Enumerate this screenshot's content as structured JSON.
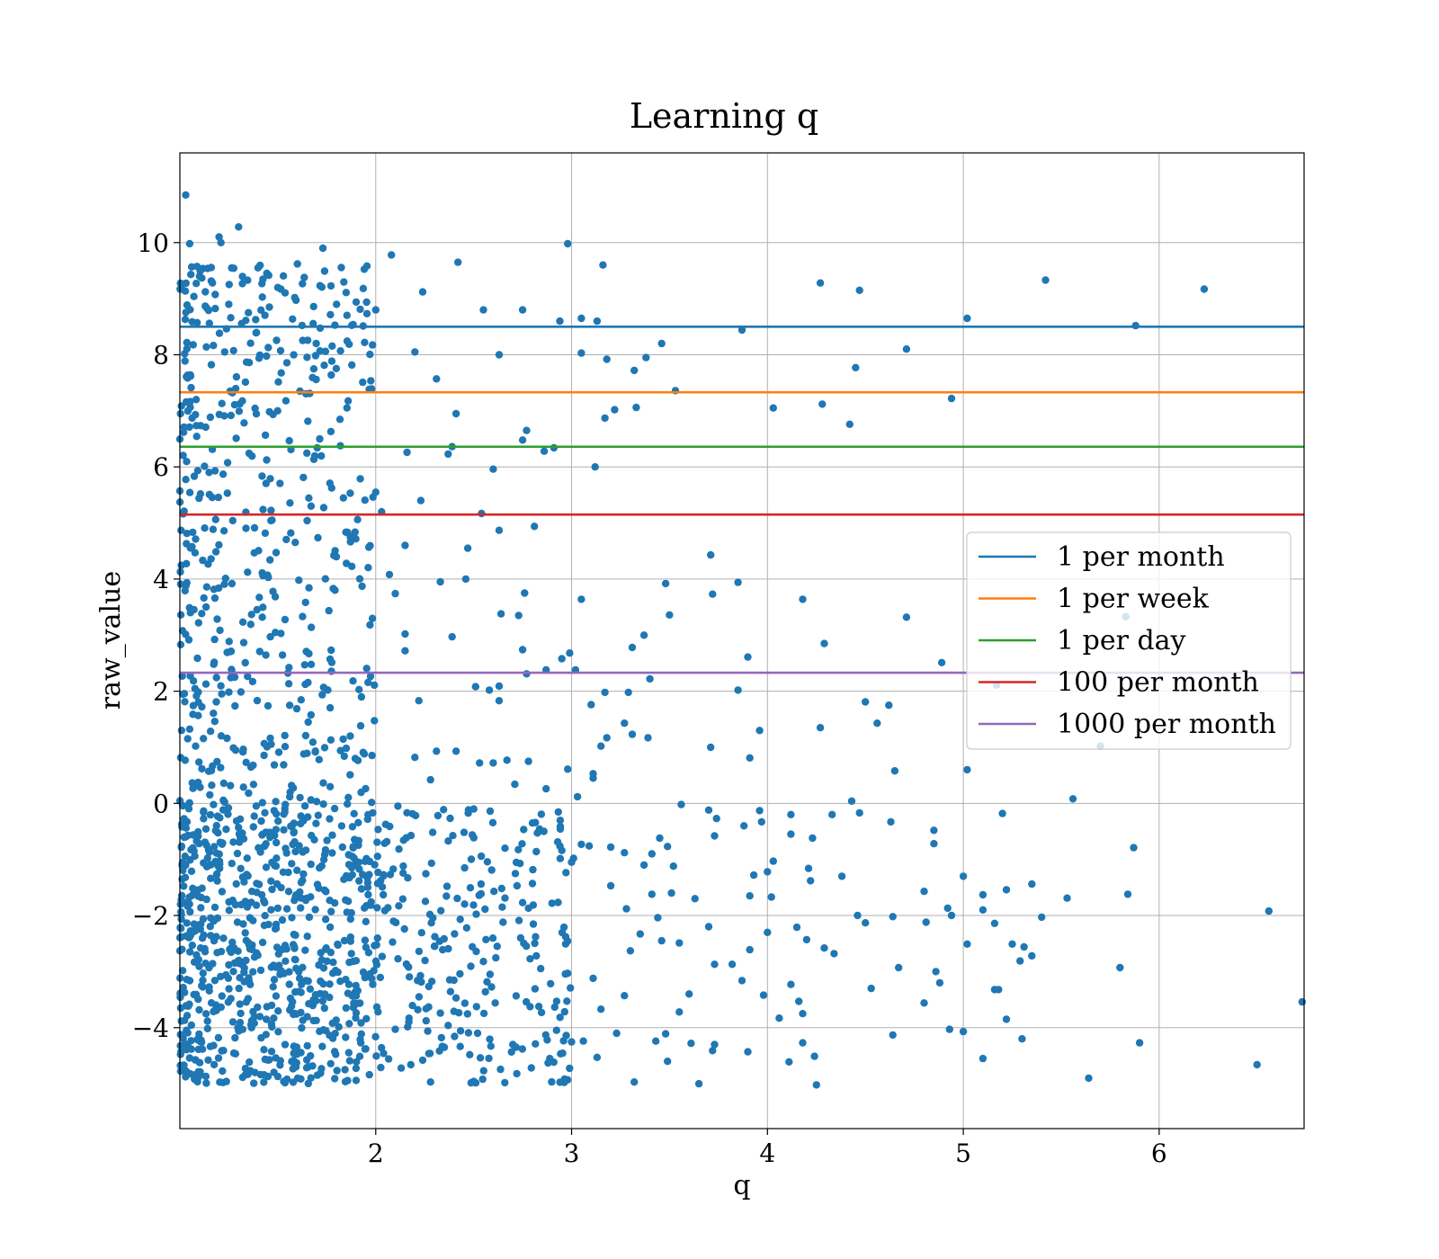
{
  "chart_data": {
    "type": "scatter",
    "title": "Learning q",
    "xlabel": "q",
    "ylabel": "raw_value",
    "xlim": [
      1.0,
      6.74
    ],
    "ylim": [
      -5.8,
      11.6
    ],
    "x_ticks": [
      2,
      3,
      4,
      5,
      6
    ],
    "y_ticks": [
      -4,
      -2,
      0,
      2,
      4,
      6,
      8,
      10
    ],
    "x_tick_labels": [
      "2",
      "3",
      "4",
      "5",
      "6"
    ],
    "y_tick_labels": [
      "−4",
      "−2",
      "0",
      "2",
      "4",
      "6",
      "8",
      "10"
    ],
    "grid": true,
    "legend_position": "center-right",
    "point_color": "#1f77b4",
    "reference_lines": [
      {
        "name": "1 per month",
        "y": 8.5,
        "color": "#1f77b4"
      },
      {
        "name": "1 per week",
        "y": 7.33,
        "color": "#ff7f0e"
      },
      {
        "name": "1 per day",
        "y": 6.36,
        "color": "#2ca02c"
      },
      {
        "name": "100 per month",
        "y": 5.15,
        "color": "#d62728"
      },
      {
        "name": "1000 per month",
        "y": 2.33,
        "color": "#9467bd"
      }
    ],
    "points": [
      [
        1.03,
        10.85
      ],
      [
        1.2,
        10.1
      ],
      [
        1.3,
        10.28
      ],
      [
        1.21,
        10.0
      ],
      [
        1.73,
        9.9
      ],
      [
        1.05,
        9.98
      ],
      [
        2.98,
        9.98
      ],
      [
        2.08,
        9.78
      ],
      [
        2.42,
        9.65
      ],
      [
        3.16,
        9.6
      ],
      [
        5.42,
        9.33
      ],
      [
        4.27,
        9.28
      ],
      [
        6.23,
        9.17
      ],
      [
        4.47,
        9.15
      ],
      [
        2.24,
        9.12
      ],
      [
        1.6,
        9.62
      ],
      [
        1.1,
        9.4
      ],
      [
        1.5,
        9.2
      ],
      [
        1.25,
        8.9
      ],
      [
        1.35,
        8.75
      ],
      [
        1.8,
        8.9
      ],
      [
        2.0,
        8.8
      ],
      [
        2.55,
        8.8
      ],
      [
        2.75,
        8.8
      ],
      [
        3.05,
        8.65
      ],
      [
        3.13,
        8.6
      ],
      [
        2.94,
        8.6
      ],
      [
        5.02,
        8.65
      ],
      [
        5.88,
        8.52
      ],
      [
        3.87,
        8.44
      ],
      [
        3.46,
        8.2
      ],
      [
        4.71,
        8.1
      ],
      [
        3.38,
        7.95
      ],
      [
        3.18,
        7.92
      ],
      [
        2.63,
        8.0
      ],
      [
        3.05,
        8.03
      ],
      [
        2.2,
        8.05
      ],
      [
        4.45,
        7.77
      ],
      [
        3.32,
        7.72
      ],
      [
        3.53,
        7.36
      ],
      [
        2.31,
        7.57
      ],
      [
        4.03,
        7.05
      ],
      [
        4.28,
        7.12
      ],
      [
        3.33,
        7.06
      ],
      [
        3.22,
        7.02
      ],
      [
        4.94,
        7.22
      ],
      [
        4.42,
        6.76
      ],
      [
        3.17,
        6.87
      ],
      [
        2.41,
        6.95
      ],
      [
        2.75,
        6.48
      ],
      [
        2.77,
        6.65
      ],
      [
        2.91,
        6.34
      ],
      [
        2.86,
        6.28
      ],
      [
        2.39,
        6.36
      ],
      [
        2.16,
        6.26
      ],
      [
        2.37,
        6.23
      ],
      [
        3.12,
        6.0
      ],
      [
        2.6,
        5.96
      ],
      [
        2.0,
        5.55
      ],
      [
        2.23,
        5.4
      ],
      [
        2.03,
        5.2
      ],
      [
        2.54,
        5.17
      ],
      [
        2.63,
        4.87
      ],
      [
        2.81,
        4.94
      ],
      [
        1.87,
        4.75
      ],
      [
        2.15,
        4.6
      ],
      [
        2.47,
        4.55
      ],
      [
        3.71,
        4.43
      ],
      [
        2.07,
        4.08
      ],
      [
        2.46,
        4.0
      ],
      [
        2.33,
        3.95
      ],
      [
        3.48,
        3.92
      ],
      [
        3.85,
        3.94
      ],
      [
        2.1,
        3.74
      ],
      [
        2.76,
        3.75
      ],
      [
        3.72,
        3.73
      ],
      [
        3.05,
        3.64
      ],
      [
        4.18,
        3.64
      ],
      [
        2.64,
        3.38
      ],
      [
        2.73,
        3.35
      ],
      [
        3.5,
        3.36
      ],
      [
        4.71,
        3.32
      ],
      [
        5.83,
        3.33
      ],
      [
        2.15,
        3.02
      ],
      [
        2.39,
        2.97
      ],
      [
        3.37,
        3.0
      ],
      [
        3.31,
        2.78
      ],
      [
        4.29,
        2.85
      ],
      [
        2.15,
        2.72
      ],
      [
        2.75,
        2.74
      ],
      [
        2.95,
        2.58
      ],
      [
        3.9,
        2.61
      ],
      [
        2.99,
        2.68
      ],
      [
        4.89,
        2.51
      ],
      [
        2.87,
        2.38
      ],
      [
        3.02,
        2.38
      ],
      [
        2.77,
        2.31
      ],
      [
        3.4,
        2.22
      ],
      [
        2.51,
        2.08
      ],
      [
        2.63,
        2.09
      ],
      [
        2.58,
        2.02
      ],
      [
        3.17,
        1.98
      ],
      [
        3.29,
        1.98
      ],
      [
        3.85,
        2.02
      ],
      [
        5.17,
        2.11
      ],
      [
        2.22,
        1.83
      ],
      [
        2.63,
        1.83
      ],
      [
        3.1,
        1.76
      ],
      [
        4.5,
        1.81
      ],
      [
        4.62,
        1.75
      ],
      [
        4.56,
        1.43
      ],
      [
        3.27,
        1.43
      ],
      [
        3.31,
        1.23
      ],
      [
        3.39,
        1.17
      ],
      [
        3.18,
        1.17
      ],
      [
        3.15,
        1.02
      ],
      [
        3.71,
        1.0
      ],
      [
        5.7,
        1.02
      ],
      [
        3.96,
        1.3
      ],
      [
        4.27,
        1.35
      ],
      [
        2.41,
        0.93
      ],
      [
        2.31,
        0.93
      ],
      [
        2.6,
        0.72
      ],
      [
        2.2,
        0.82
      ],
      [
        2.67,
        0.77
      ],
      [
        2.78,
        0.75
      ],
      [
        3.11,
        0.53
      ],
      [
        3.11,
        0.45
      ],
      [
        2.98,
        0.61
      ],
      [
        3.91,
        0.81
      ],
      [
        4.65,
        0.58
      ],
      [
        5.02,
        0.6
      ],
      [
        2.28,
        0.42
      ],
      [
        2.53,
        0.72
      ],
      [
        2.87,
        0.26
      ],
      [
        2.71,
        0.34
      ],
      [
        3.03,
        0.12
      ],
      [
        4.43,
        0.04
      ],
      [
        5.56,
        0.08
      ],
      [
        2.5,
        -0.1
      ],
      [
        2.8,
        -0.35
      ],
      [
        3.56,
        -0.02
      ],
      [
        3.7,
        -0.12
      ],
      [
        3.74,
        -0.27
      ],
      [
        3.96,
        -0.13
      ],
      [
        4.12,
        -0.2
      ],
      [
        4.33,
        -0.2
      ],
      [
        4.47,
        -0.17
      ],
      [
        4.63,
        -0.33
      ],
      [
        5.2,
        -0.18
      ],
      [
        3.88,
        -0.4
      ],
      [
        3.97,
        -0.33
      ],
      [
        4.85,
        -0.48
      ],
      [
        3.73,
        -0.58
      ],
      [
        4.12,
        -0.55
      ],
      [
        4.23,
        -0.62
      ],
      [
        4.85,
        -0.72
      ],
      [
        5.87,
        -0.79
      ],
      [
        3.45,
        -0.62
      ],
      [
        3.49,
        -0.77
      ],
      [
        3.2,
        -0.78
      ],
      [
        2.66,
        -0.8
      ],
      [
        3.01,
        -0.98
      ],
      [
        4.03,
        -1.03
      ],
      [
        4.21,
        -1.16
      ],
      [
        4.0,
        -1.22
      ],
      [
        4.38,
        -1.3
      ],
      [
        5.0,
        -1.3
      ],
      [
        3.93,
        -1.28
      ],
      [
        5.35,
        -1.44
      ],
      [
        5.22,
        -1.54
      ],
      [
        4.8,
        -1.57
      ],
      [
        5.1,
        -1.63
      ],
      [
        5.53,
        -1.69
      ],
      [
        5.84,
        -1.62
      ],
      [
        4.02,
        -1.67
      ],
      [
        3.91,
        -1.65
      ],
      [
        4.92,
        -1.87
      ],
      [
        4.22,
        -1.38
      ],
      [
        4.5,
        -2.13
      ],
      [
        4.64,
        -2.02
      ],
      [
        4.81,
        -2.12
      ],
      [
        5.16,
        -2.14
      ],
      [
        5.1,
        -1.9
      ],
      [
        5.4,
        -2.03
      ],
      [
        6.56,
        -1.92
      ],
      [
        4.94,
        -2.0
      ],
      [
        4.15,
        -2.21
      ],
      [
        4.46,
        -2.0
      ],
      [
        4.0,
        -2.3
      ],
      [
        3.3,
        -2.63
      ],
      [
        3.91,
        -2.61
      ],
      [
        4.2,
        -2.43
      ],
      [
        4.29,
        -2.58
      ],
      [
        4.34,
        -2.68
      ],
      [
        5.02,
        -2.51
      ],
      [
        5.25,
        -2.51
      ],
      [
        5.31,
        -2.56
      ],
      [
        5.35,
        -2.72
      ],
      [
        5.29,
        -2.81
      ],
      [
        4.67,
        -2.93
      ],
      [
        4.86,
        -3.0
      ],
      [
        4.88,
        -3.2
      ],
      [
        4.53,
        -3.3
      ],
      [
        5.16,
        -3.32
      ],
      [
        5.18,
        -3.32
      ],
      [
        5.8,
        -2.93
      ],
      [
        3.98,
        -3.42
      ],
      [
        4.12,
        -3.23
      ],
      [
        4.06,
        -3.83
      ],
      [
        4.16,
        -3.53
      ],
      [
        4.18,
        -3.75
      ],
      [
        4.8,
        -3.56
      ],
      [
        5.22,
        -3.85
      ],
      [
        4.93,
        -4.03
      ],
      [
        5.0,
        -4.07
      ],
      [
        5.3,
        -4.2
      ],
      [
        4.64,
        -4.13
      ],
      [
        4.18,
        -4.27
      ],
      [
        4.11,
        -4.61
      ],
      [
        4.24,
        -4.51
      ],
      [
        5.1,
        -4.55
      ],
      [
        5.9,
        -4.27
      ],
      [
        6.73,
        -3.54
      ],
      [
        6.5,
        -4.66
      ],
      [
        5.64,
        -4.9
      ],
      [
        4.25,
        -5.02
      ],
      [
        3.65,
        -5.0
      ],
      [
        2.98,
        -4.93
      ],
      [
        2.72,
        -4.82
      ],
      [
        2.5,
        -4.96
      ],
      [
        2.28,
        -4.97
      ],
      [
        3.32,
        -4.97
      ],
      [
        3.72,
        -4.41
      ],
      [
        3.73,
        -4.3
      ],
      [
        3.61,
        -4.28
      ],
      [
        3.9,
        -4.43
      ],
      [
        3.55,
        -3.72
      ],
      [
        3.6,
        -3.4
      ],
      [
        3.87,
        -3.16
      ],
      [
        3.82,
        -2.87
      ],
      [
        3.73,
        -2.87
      ],
      [
        3.55,
        -2.49
      ],
      [
        3.7,
        -2.2
      ],
      [
        3.46,
        -2.45
      ],
      [
        3.35,
        -2.33
      ],
      [
        3.44,
        -2.04
      ],
      [
        3.63,
        -1.7
      ],
      [
        3.41,
        -1.62
      ],
      [
        3.28,
        -1.88
      ],
      [
        3.2,
        -1.47
      ],
      [
        3.51,
        -1.6
      ],
      [
        3.52,
        -1.12
      ],
      [
        3.37,
        -1.1
      ],
      [
        3.27,
        -0.88
      ],
      [
        3.41,
        -0.9
      ],
      [
        3.09,
        -0.76
      ],
      [
        3.05,
        -0.73
      ],
      [
        3.0,
        -1.05
      ],
      [
        2.95,
        -0.84
      ],
      [
        2.8,
        -1.43
      ],
      [
        2.78,
        -1.87
      ],
      [
        2.66,
        -1.69
      ],
      [
        2.65,
        -2.12
      ],
      [
        2.62,
        -2.55
      ],
      [
        2.74,
        -2.4
      ],
      [
        2.82,
        -2.72
      ],
      [
        2.97,
        -2.38
      ],
      [
        2.98,
        -3.03
      ],
      [
        3.11,
        -3.12
      ],
      [
        3.15,
        -3.67
      ],
      [
        3.27,
        -3.43
      ],
      [
        3.23,
        -4.1
      ],
      [
        3.43,
        -4.24
      ],
      [
        3.48,
        -4.11
      ],
      [
        3.49,
        -4.6
      ],
      [
        3.13,
        -4.53
      ],
      [
        3.06,
        -4.24
      ],
      [
        2.88,
        -4.63
      ],
      [
        2.7,
        -4.3
      ],
      [
        2.52,
        -4.1
      ],
      [
        2.61,
        -3.56
      ],
      [
        2.56,
        -3.36
      ],
      [
        2.43,
        -3.04
      ],
      [
        2.41,
        -3.47
      ],
      [
        2.37,
        -3.96
      ],
      [
        2.27,
        -3.63
      ],
      [
        2.17,
        -3.83
      ],
      [
        2.1,
        -4.03
      ],
      [
        2.04,
        -4.46
      ],
      [
        2.13,
        -4.72
      ],
      [
        2.24,
        -4.58
      ],
      [
        2.35,
        -4.35
      ]
    ],
    "point_clusters": [
      {
        "x": [
          1.0,
          2.0
        ],
        "y": [
          -5.0,
          0.0
        ],
        "count": 700
      },
      {
        "x": [
          1.0,
          2.0
        ],
        "y": [
          0.0,
          2.6
        ],
        "count": 150
      },
      {
        "x": [
          1.0,
          2.0
        ],
        "y": [
          2.6,
          5.2
        ],
        "count": 120
      },
      {
        "x": [
          1.0,
          2.0
        ],
        "y": [
          5.2,
          8.0
        ],
        "count": 130
      },
      {
        "x": [
          1.0,
          2.0
        ],
        "y": [
          8.0,
          9.6
        ],
        "count": 110
      },
      {
        "x": [
          2.0,
          3.0
        ],
        "y": [
          -5.0,
          0.0
        ],
        "count": 230
      }
    ]
  }
}
